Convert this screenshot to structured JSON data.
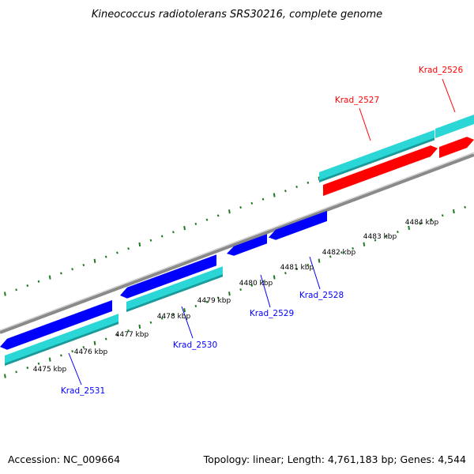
{
  "title": "Kineococcus radiotolerans SRS30216, complete genome",
  "footer": {
    "accession": "Accession: NC_009664",
    "summary": "Topology: linear; Length: 4,761,183 bp; Genes: 4,544"
  },
  "colors": {
    "forward_gene": "#ff0000",
    "reverse_gene": "#0000ff",
    "cds": "#2ad6d6",
    "backbone": "#8a8a8a",
    "tick": "#1e7a1e"
  },
  "kbp_ticks": [
    "4475 kbp",
    "4476 kbp",
    "4477 kbp",
    "4478 kbp",
    "4479 kbp",
    "4480 kbp",
    "4481 kbp",
    "4482 kbp",
    "4483 kbp",
    "4484 kbp"
  ],
  "genes": [
    {
      "label": "Krad_2526",
      "strand": "forward"
    },
    {
      "label": "Krad_2527",
      "strand": "forward"
    },
    {
      "label": "Krad_2528",
      "strand": "reverse"
    },
    {
      "label": "Krad_2529",
      "strand": "reverse"
    },
    {
      "label": "Krad_2530",
      "strand": "reverse"
    },
    {
      "label": "Krad_2531",
      "strand": "reverse"
    }
  ]
}
